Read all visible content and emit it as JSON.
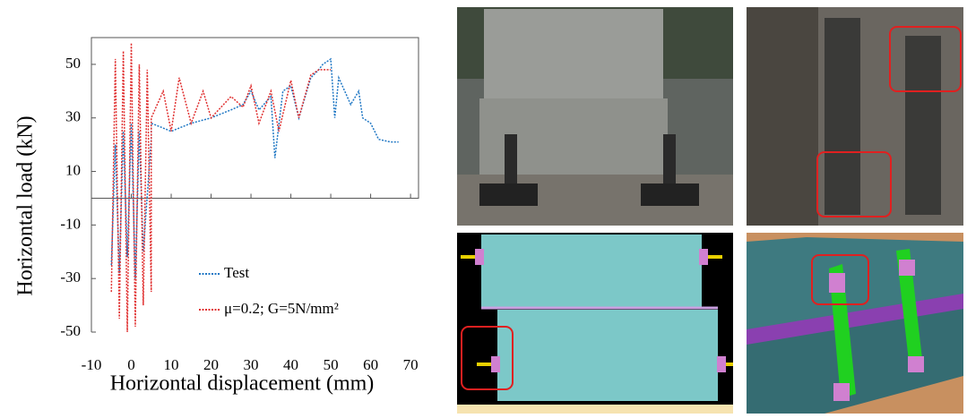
{
  "chart_data": {
    "type": "line",
    "x_label": "Horizontal displacement (mm)",
    "y_label": "Horizontal load (kN)",
    "xlim": [
      -10,
      72
    ],
    "ylim": [
      -50,
      60
    ],
    "xticks": [
      -10,
      0,
      10,
      20,
      30,
      40,
      50,
      60,
      70
    ],
    "yticks": [
      -50,
      -30,
      -10,
      10,
      30,
      50
    ],
    "series": [
      {
        "name": "Test",
        "color": "#1f77c4",
        "x": [
          -5,
          -4,
          -3,
          -2,
          -1,
          0,
          1,
          2,
          3,
          5,
          5,
          10,
          15,
          20,
          25,
          28,
          30,
          32,
          35,
          36,
          38,
          40,
          42,
          45,
          47,
          48,
          50,
          51,
          52,
          55,
          57,
          58,
          60,
          62,
          65,
          67
        ],
        "values": [
          -25,
          20,
          -28,
          25,
          -22,
          28,
          -30,
          25,
          -20,
          22,
          28,
          25,
          28,
          30,
          33,
          35,
          40,
          33,
          38,
          15,
          40,
          42,
          30,
          45,
          48,
          50,
          52,
          30,
          45,
          35,
          40,
          30,
          28,
          22,
          21,
          21
        ]
      },
      {
        "name": "μ=0.2; G=5N/mm²",
        "color": "#e03030",
        "x": [
          -5,
          -4,
          -3,
          -2,
          -1,
          0,
          1,
          2,
          3,
          4,
          5,
          5,
          8,
          10,
          12,
          15,
          18,
          20,
          25,
          28,
          30,
          32,
          35,
          37,
          40,
          42,
          45,
          47,
          50
        ],
        "values": [
          -35,
          52,
          -45,
          55,
          -50,
          58,
          -48,
          50,
          -40,
          48,
          -35,
          30,
          40,
          25,
          45,
          28,
          40,
          30,
          38,
          34,
          42,
          28,
          40,
          25,
          44,
          30,
          46,
          48,
          48
        ]
      }
    ]
  }
}
